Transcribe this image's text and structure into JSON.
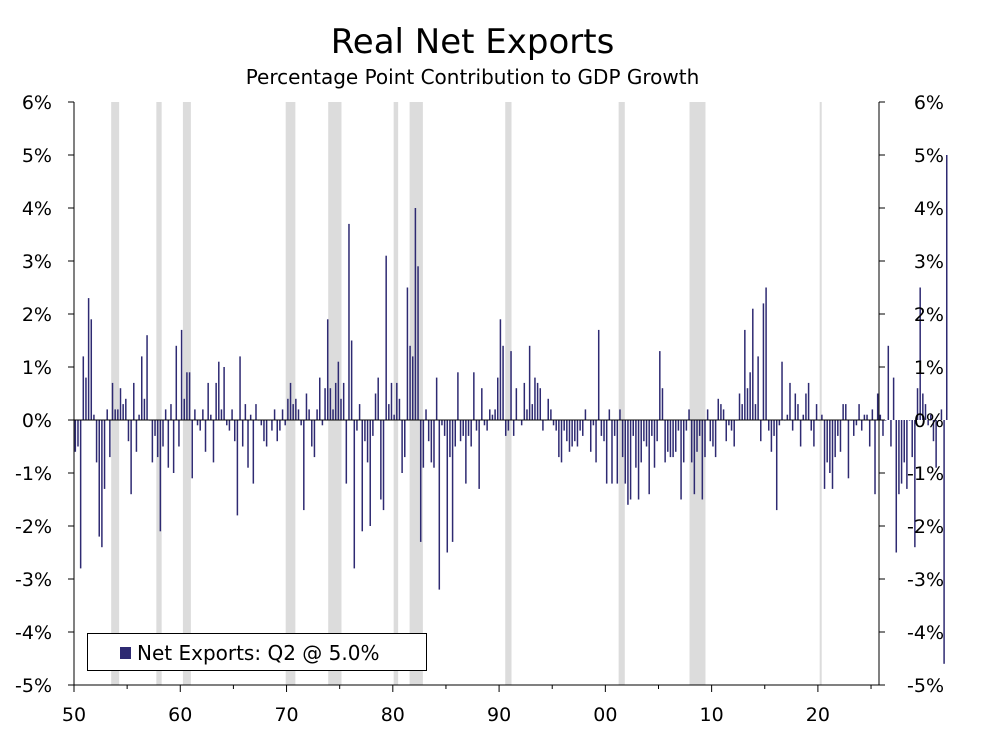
{
  "chart_data": {
    "type": "bar",
    "title": "Real Net Exports",
    "subtitle": "Percentage Point Contribution to GDP Growth",
    "xlabel": "",
    "ylabel": "",
    "ylim": [
      -5,
      6
    ],
    "yticks": [
      "-5%",
      "-4%",
      "-3%",
      "-2%",
      "-1%",
      "0%",
      "1%",
      "2%",
      "3%",
      "4%",
      "5%",
      "6%"
    ],
    "xticks": [
      {
        "label": "50",
        "year": 1950
      },
      {
        "label": "60",
        "year": 1960
      },
      {
        "label": "70",
        "year": 1970
      },
      {
        "label": "80",
        "year": 1980
      },
      {
        "label": "90",
        "year": 1990
      },
      {
        "label": "00",
        "year": 2000
      },
      {
        "label": "10",
        "year": 2010
      },
      {
        "label": "20",
        "year": 2020
      }
    ],
    "xlim": [
      1950,
      2025.75
    ],
    "bar_color": "#2e2a72",
    "recession_color": "#dcdcdc",
    "recessions": [
      [
        1953.5,
        1954.25
      ],
      [
        1957.75,
        1958.25
      ],
      [
        1960.25,
        1961.0
      ],
      [
        1969.92,
        1970.83
      ],
      [
        1973.92,
        1975.17
      ],
      [
        1980.08,
        1980.5
      ],
      [
        1981.58,
        1982.83
      ],
      [
        1990.58,
        1991.17
      ],
      [
        2001.25,
        2001.83
      ],
      [
        2007.92,
        2009.42
      ],
      [
        2020.17,
        2020.33
      ]
    ],
    "legend_position": "bottom-left",
    "series": [
      {
        "name": "Net Exports: Q2 @ 5.0%",
        "start": 1950.0,
        "freq_per_year": 4,
        "values": [
          -0.6,
          -0.5,
          -2.8,
          1.2,
          0.8,
          2.3,
          1.9,
          0.1,
          -0.8,
          -2.2,
          -2.4,
          -1.3,
          0.2,
          -0.7,
          0.7,
          0.2,
          0.2,
          0.6,
          0.3,
          0.4,
          -0.4,
          -1.4,
          0.7,
          -0.6,
          0.1,
          1.2,
          0.4,
          1.6,
          0.0,
          -0.8,
          -0.3,
          -0.7,
          -2.1,
          -0.5,
          0.2,
          -0.9,
          0.3,
          -1.0,
          1.4,
          -0.5,
          1.7,
          0.4,
          0.9,
          0.9,
          -1.1,
          0.2,
          -0.1,
          -0.2,
          0.2,
          -0.6,
          0.7,
          0.1,
          -0.8,
          0.7,
          1.1,
          0.2,
          1.0,
          -0.1,
          -0.2,
          0.2,
          -0.4,
          -1.8,
          1.2,
          -0.5,
          0.3,
          -0.9,
          0.1,
          -1.2,
          0.3,
          0.0,
          -0.1,
          -0.4,
          -0.5,
          0.0,
          -0.2,
          0.2,
          -0.4,
          -0.2,
          0.2,
          -0.1,
          0.4,
          0.7,
          0.3,
          0.4,
          0.2,
          -0.1,
          -1.7,
          0.5,
          0.2,
          -0.5,
          -0.7,
          0.2,
          0.8,
          -0.1,
          0.6,
          1.9,
          0.6,
          0.2,
          0.7,
          1.1,
          0.4,
          0.7,
          -1.2,
          3.7,
          1.5,
          -2.8,
          -0.2,
          0.3,
          -2.1,
          -0.4,
          -0.8,
          -2.0,
          -0.3,
          0.5,
          0.8,
          -1.5,
          -1.7,
          3.1,
          0.3,
          0.7,
          0.1,
          0.7,
          0.4,
          -1.0,
          -0.7,
          2.5,
          1.4,
          1.2,
          4.0,
          2.9,
          -2.3,
          -0.9,
          0.2,
          -0.4,
          -0.8,
          -0.9,
          0.8,
          -3.2,
          -0.1,
          -0.3,
          -2.5,
          -0.7,
          -2.3,
          -0.5,
          0.9,
          -0.4,
          -0.3,
          -1.2,
          -0.3,
          -0.5,
          0.9,
          -0.2,
          -1.3,
          0.6,
          -0.1,
          -0.2,
          0.2,
          0.1,
          0.2,
          0.8,
          1.9,
          1.4,
          -0.3,
          -0.2,
          1.3,
          -0.3,
          0.6,
          0.0,
          -0.1,
          0.7,
          0.2,
          1.4,
          0.3,
          0.8,
          0.7,
          0.6,
          -0.2,
          0.0,
          0.4,
          0.2,
          -0.1,
          -0.2,
          -0.7,
          -0.8,
          -0.2,
          -0.4,
          -0.6,
          -0.5,
          -0.4,
          -0.5,
          -0.2,
          -0.3,
          0.2,
          0.0,
          -0.6,
          -0.1,
          -0.8,
          1.7,
          -0.3,
          -0.4,
          -1.2,
          0.2,
          -1.2,
          -0.3,
          -1.2,
          0.2,
          -0.7,
          -1.2,
          -1.6,
          -1.5,
          -0.3,
          -0.9,
          -1.5,
          -0.8,
          -0.4,
          -0.5,
          -1.4,
          -0.3,
          -0.9,
          -0.4,
          1.3,
          0.6,
          -0.8,
          -0.6,
          -0.7,
          -0.7,
          -0.6,
          -0.2,
          -1.5,
          -0.8,
          -0.2,
          0.2,
          -0.8,
          -1.4,
          -0.6,
          -0.3,
          -1.5,
          -0.7,
          0.2,
          -0.4,
          -0.5,
          -0.7,
          0.4,
          0.3,
          0.2,
          -0.4,
          -0.1,
          -0.2,
          -0.5,
          0.0,
          0.5,
          0.3,
          1.7,
          0.6,
          0.9,
          2.1,
          0.3,
          1.2,
          -0.4,
          2.2,
          2.5,
          -0.2,
          -0.6,
          -0.3,
          -1.7,
          -0.1,
          1.1,
          0.0,
          0.1,
          0.7,
          -0.2,
          0.5,
          0.3,
          -0.5,
          0.1,
          0.5,
          0.7,
          -0.2,
          -0.5,
          0.3,
          0.0,
          0.1,
          -1.3,
          -0.8,
          -1.0,
          -1.3,
          -0.7,
          -0.3,
          -0.6,
          0.3,
          0.3,
          -1.1,
          0.0,
          -0.3,
          -0.1,
          0.3,
          -0.2,
          0.1,
          0.1,
          -0.5,
          0.2,
          -1.4,
          0.5,
          0.1,
          -0.3,
          0.0,
          1.4,
          -0.5,
          0.8,
          -2.5,
          -1.4,
          -1.2,
          -0.8,
          -1.3,
          0.0,
          -0.7,
          -2.4,
          0.6,
          2.5,
          0.5,
          0.3,
          -0.1,
          0.1,
          -0.4,
          -0.9,
          0.0,
          0.2,
          -4.6,
          5.0
        ]
      }
    ]
  }
}
